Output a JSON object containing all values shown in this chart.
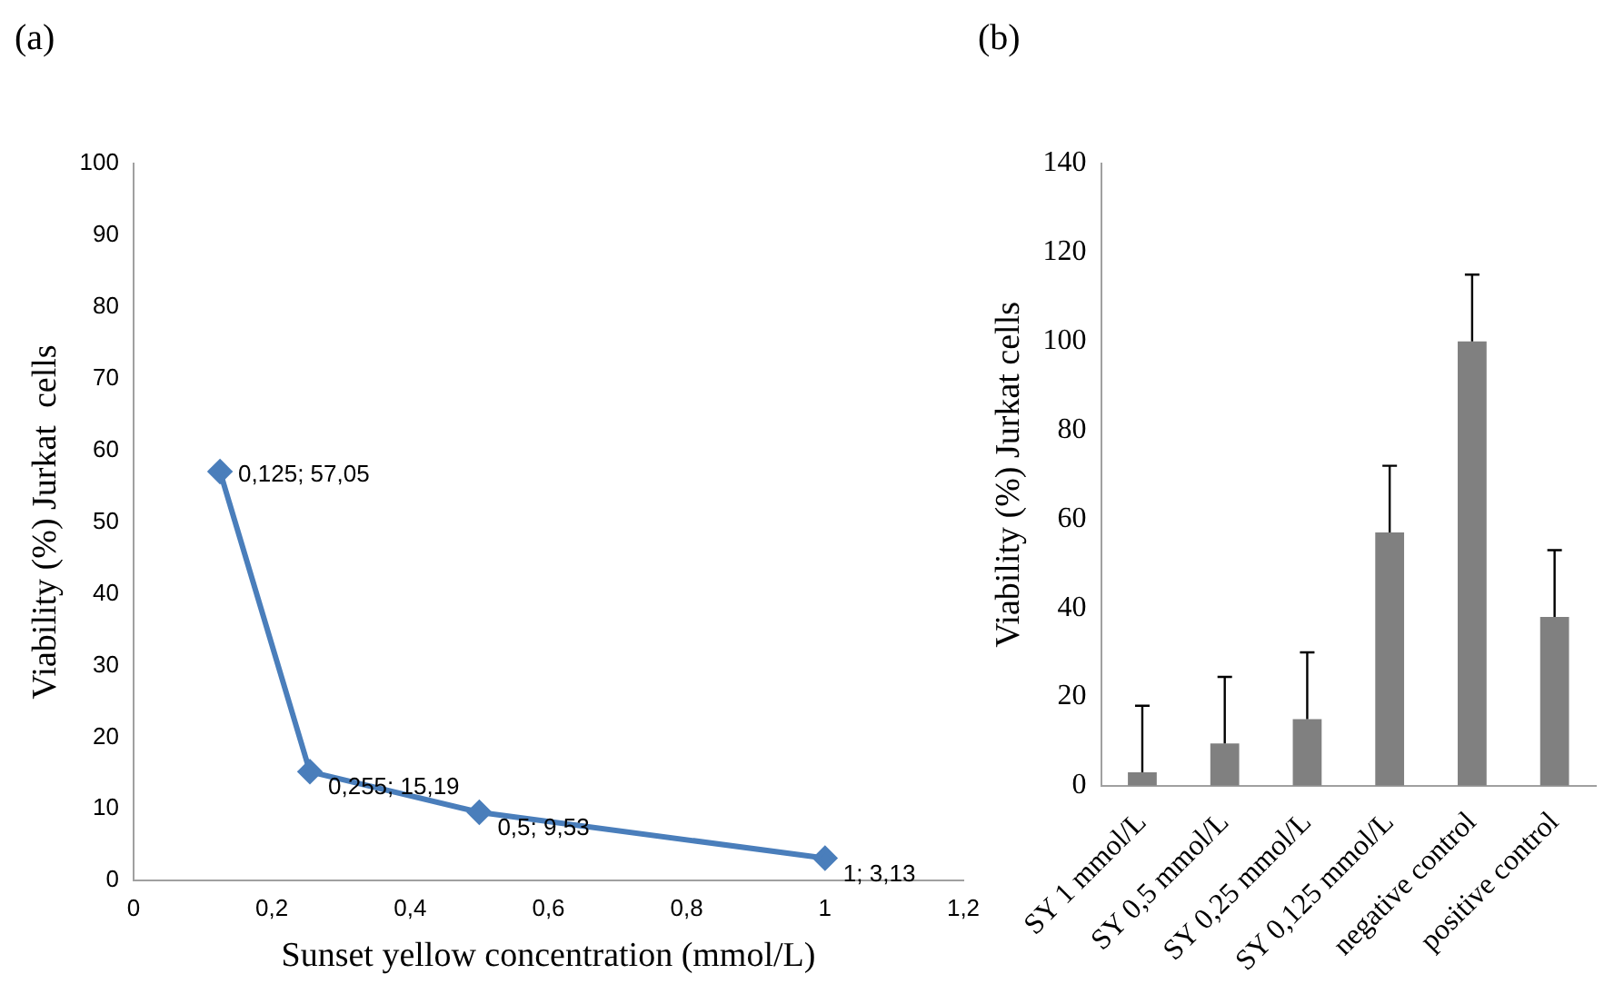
{
  "chart_data": [
    {
      "type": "line",
      "title": "(a)",
      "xlabel": "Sunset yellow concentration (mmol/L)",
      "ylabel": "Viability (%) Jurkat  cells",
      "x": [
        0.125,
        0.255,
        0.5,
        1
      ],
      "series": [
        {
          "color": "#4a7ebb",
          "values": [
            57.05,
            15.19,
            9.53,
            3.13
          ],
          "value_labels": [
            "0,125; 57,05",
            "0,255; 15,19",
            "0,5; 9,53",
            "1; 3,13"
          ]
        }
      ],
      "xlim": [
        0,
        1.2
      ],
      "xticks": [
        0,
        {
          "value": 0.2,
          "label": "0,2"
        },
        {
          "value": 0.4,
          "label": "0,4"
        },
        {
          "value": 0.6,
          "label": "0,6"
        },
        {
          "value": 0.8,
          "label": "0,8"
        },
        1,
        {
          "value": 1.2,
          "label": "1,2"
        }
      ],
      "ylim": [
        0,
        100
      ],
      "yticks": [
        0,
        10,
        20,
        30,
        40,
        50,
        60,
        70,
        80,
        90,
        100
      ],
      "legend": false,
      "marker": "diamond",
      "line_style": "solid"
    },
    {
      "type": "bar",
      "title": "(b)",
      "ylabel": "Viability (%) Jurkat cells",
      "categories": [
        "SY 1 mmol/L",
        "SY 0,5 mmol/L",
        "SY 0,25 mmol/L",
        "SY 0,125 mmol/L",
        "negative control",
        "positive control"
      ],
      "series": [
        {
          "color": "#808080",
          "values": [
            3,
            9.5,
            15,
            57,
            100,
            38
          ],
          "errors": [
            [
              3,
              18
            ],
            [
              9.5,
              24.5
            ],
            [
              15,
              30
            ],
            [
              57,
              72
            ],
            [
              100,
              115
            ],
            [
              38,
              53
            ]
          ]
        }
      ],
      "ylim": [
        0,
        140
      ],
      "yticks": [
        0,
        20,
        40,
        60,
        80,
        100,
        120,
        140
      ],
      "legend": false
    }
  ]
}
